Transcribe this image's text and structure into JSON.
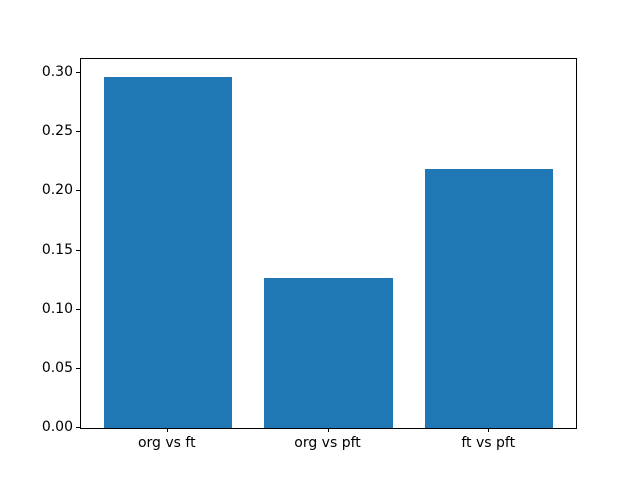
{
  "chart_data": {
    "type": "bar",
    "title": "",
    "xlabel": "",
    "ylabel": "",
    "categories": [
      "org vs ft",
      "org vs pft",
      "ft vs pft"
    ],
    "values": [
      0.297,
      0.127,
      0.219
    ],
    "yticks": [
      "0.00",
      "0.05",
      "0.10",
      "0.15",
      "0.20",
      "0.25",
      "0.30"
    ],
    "ylim": [
      0,
      0.3119
    ],
    "xlim": [
      -0.54,
      2.54
    ],
    "bar_width": 0.8,
    "bar_color": "#1f77b4",
    "spine_color": "#000000",
    "grid": "off",
    "legend": "none",
    "background_color": "#ffffff"
  }
}
